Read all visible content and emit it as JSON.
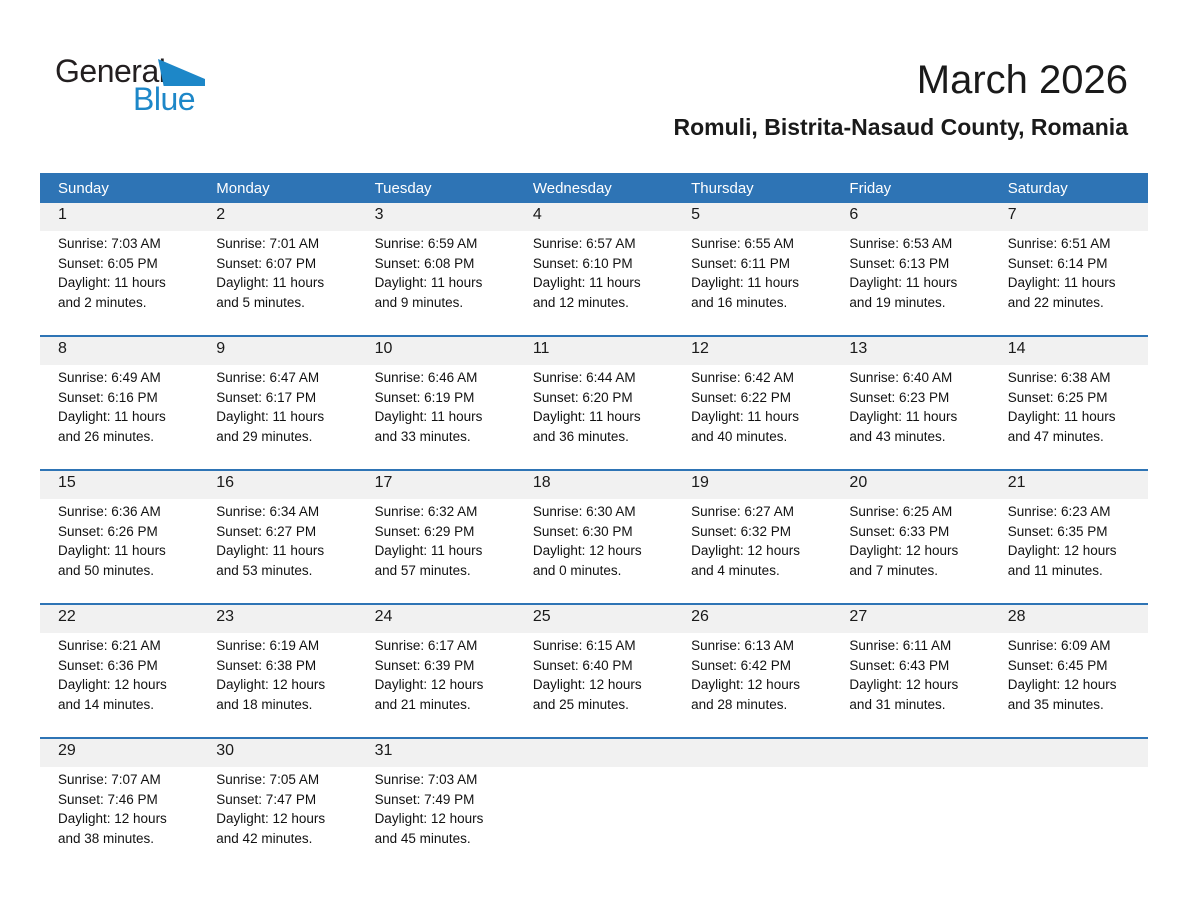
{
  "logo": {
    "general": "General",
    "blue": "Blue"
  },
  "header": {
    "title": "March 2026",
    "subtitle": "Romuli, Bistrita-Nasaud County, Romania"
  },
  "colors": {
    "header_blue": "#2e74b5",
    "band_gray": "#f1f1f1",
    "logo_blue": "#1d87c8"
  },
  "calendar": {
    "weekdays": [
      "Sunday",
      "Monday",
      "Tuesday",
      "Wednesday",
      "Thursday",
      "Friday",
      "Saturday"
    ],
    "weeks": [
      {
        "days": [
          {
            "date": "1",
            "sunrise": "Sunrise: 7:03 AM",
            "sunset": "Sunset: 6:05 PM",
            "daylight": "Daylight: 11 hours and 2 minutes."
          },
          {
            "date": "2",
            "sunrise": "Sunrise: 7:01 AM",
            "sunset": "Sunset: 6:07 PM",
            "daylight": "Daylight: 11 hours and 5 minutes."
          },
          {
            "date": "3",
            "sunrise": "Sunrise: 6:59 AM",
            "sunset": "Sunset: 6:08 PM",
            "daylight": "Daylight: 11 hours and 9 minutes."
          },
          {
            "date": "4",
            "sunrise": "Sunrise: 6:57 AM",
            "sunset": "Sunset: 6:10 PM",
            "daylight": "Daylight: 11 hours and 12 minutes."
          },
          {
            "date": "5",
            "sunrise": "Sunrise: 6:55 AM",
            "sunset": "Sunset: 6:11 PM",
            "daylight": "Daylight: 11 hours and 16 minutes."
          },
          {
            "date": "6",
            "sunrise": "Sunrise: 6:53 AM",
            "sunset": "Sunset: 6:13 PM",
            "daylight": "Daylight: 11 hours and 19 minutes."
          },
          {
            "date": "7",
            "sunrise": "Sunrise: 6:51 AM",
            "sunset": "Sunset: 6:14 PM",
            "daylight": "Daylight: 11 hours and 22 minutes."
          }
        ]
      },
      {
        "days": [
          {
            "date": "8",
            "sunrise": "Sunrise: 6:49 AM",
            "sunset": "Sunset: 6:16 PM",
            "daylight": "Daylight: 11 hours and 26 minutes."
          },
          {
            "date": "9",
            "sunrise": "Sunrise: 6:47 AM",
            "sunset": "Sunset: 6:17 PM",
            "daylight": "Daylight: 11 hours and 29 minutes."
          },
          {
            "date": "10",
            "sunrise": "Sunrise: 6:46 AM",
            "sunset": "Sunset: 6:19 PM",
            "daylight": "Daylight: 11 hours and 33 minutes."
          },
          {
            "date": "11",
            "sunrise": "Sunrise: 6:44 AM",
            "sunset": "Sunset: 6:20 PM",
            "daylight": "Daylight: 11 hours and 36 minutes."
          },
          {
            "date": "12",
            "sunrise": "Sunrise: 6:42 AM",
            "sunset": "Sunset: 6:22 PM",
            "daylight": "Daylight: 11 hours and 40 minutes."
          },
          {
            "date": "13",
            "sunrise": "Sunrise: 6:40 AM",
            "sunset": "Sunset: 6:23 PM",
            "daylight": "Daylight: 11 hours and 43 minutes."
          },
          {
            "date": "14",
            "sunrise": "Sunrise: 6:38 AM",
            "sunset": "Sunset: 6:25 PM",
            "daylight": "Daylight: 11 hours and 47 minutes."
          }
        ]
      },
      {
        "days": [
          {
            "date": "15",
            "sunrise": "Sunrise: 6:36 AM",
            "sunset": "Sunset: 6:26 PM",
            "daylight": "Daylight: 11 hours and 50 minutes."
          },
          {
            "date": "16",
            "sunrise": "Sunrise: 6:34 AM",
            "sunset": "Sunset: 6:27 PM",
            "daylight": "Daylight: 11 hours and 53 minutes."
          },
          {
            "date": "17",
            "sunrise": "Sunrise: 6:32 AM",
            "sunset": "Sunset: 6:29 PM",
            "daylight": "Daylight: 11 hours and 57 minutes."
          },
          {
            "date": "18",
            "sunrise": "Sunrise: 6:30 AM",
            "sunset": "Sunset: 6:30 PM",
            "daylight": "Daylight: 12 hours and 0 minutes."
          },
          {
            "date": "19",
            "sunrise": "Sunrise: 6:27 AM",
            "sunset": "Sunset: 6:32 PM",
            "daylight": "Daylight: 12 hours and 4 minutes."
          },
          {
            "date": "20",
            "sunrise": "Sunrise: 6:25 AM",
            "sunset": "Sunset: 6:33 PM",
            "daylight": "Daylight: 12 hours and 7 minutes."
          },
          {
            "date": "21",
            "sunrise": "Sunrise: 6:23 AM",
            "sunset": "Sunset: 6:35 PM",
            "daylight": "Daylight: 12 hours and 11 minutes."
          }
        ]
      },
      {
        "days": [
          {
            "date": "22",
            "sunrise": "Sunrise: 6:21 AM",
            "sunset": "Sunset: 6:36 PM",
            "daylight": "Daylight: 12 hours and 14 minutes."
          },
          {
            "date": "23",
            "sunrise": "Sunrise: 6:19 AM",
            "sunset": "Sunset: 6:38 PM",
            "daylight": "Daylight: 12 hours and 18 minutes."
          },
          {
            "date": "24",
            "sunrise": "Sunrise: 6:17 AM",
            "sunset": "Sunset: 6:39 PM",
            "daylight": "Daylight: 12 hours and 21 minutes."
          },
          {
            "date": "25",
            "sunrise": "Sunrise: 6:15 AM",
            "sunset": "Sunset: 6:40 PM",
            "daylight": "Daylight: 12 hours and 25 minutes."
          },
          {
            "date": "26",
            "sunrise": "Sunrise: 6:13 AM",
            "sunset": "Sunset: 6:42 PM",
            "daylight": "Daylight: 12 hours and 28 minutes."
          },
          {
            "date": "27",
            "sunrise": "Sunrise: 6:11 AM",
            "sunset": "Sunset: 6:43 PM",
            "daylight": "Daylight: 12 hours and 31 minutes."
          },
          {
            "date": "28",
            "sunrise": "Sunrise: 6:09 AM",
            "sunset": "Sunset: 6:45 PM",
            "daylight": "Daylight: 12 hours and 35 minutes."
          }
        ]
      },
      {
        "days": [
          {
            "date": "29",
            "sunrise": "Sunrise: 7:07 AM",
            "sunset": "Sunset: 7:46 PM",
            "daylight": "Daylight: 12 hours and 38 minutes."
          },
          {
            "date": "30",
            "sunrise": "Sunrise: 7:05 AM",
            "sunset": "Sunset: 7:47 PM",
            "daylight": "Daylight: 12 hours and 42 minutes."
          },
          {
            "date": "31",
            "sunrise": "Sunrise: 7:03 AM",
            "sunset": "Sunset: 7:49 PM",
            "daylight": "Daylight: 12 hours and 45 minutes."
          }
        ]
      }
    ]
  }
}
